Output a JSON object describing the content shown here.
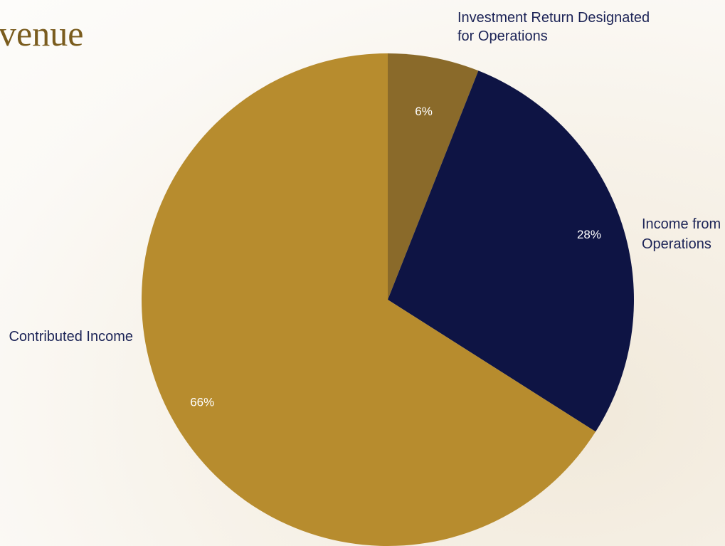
{
  "page": {
    "title": "venue",
    "title_color": "#7a5c1e"
  },
  "chart_data": {
    "type": "pie",
    "title": "",
    "start": "top",
    "direction": "clockwise",
    "slices": [
      {
        "label": "Investment Return Designated for Operations",
        "label_lines": [
          "Investment Return Designated",
          "for Operations"
        ],
        "value": 6,
        "value_label": "6%",
        "color": "#8a6a2a"
      },
      {
        "label": "Income from Operations",
        "label_lines": [
          "Income from",
          "Operations"
        ],
        "value": 28,
        "value_label": "28%",
        "color": "#0e1444"
      },
      {
        "label": "Contributed Income",
        "label_lines": [
          "Contributed Income"
        ],
        "value": 66,
        "value_label": "66%",
        "color": "#b78c2e"
      }
    ],
    "label_color": "#1b2356",
    "value_label_colors": [
      "#ffffff",
      "#ffffff",
      "#ffffff"
    ],
    "grid": false,
    "legend": "none"
  }
}
